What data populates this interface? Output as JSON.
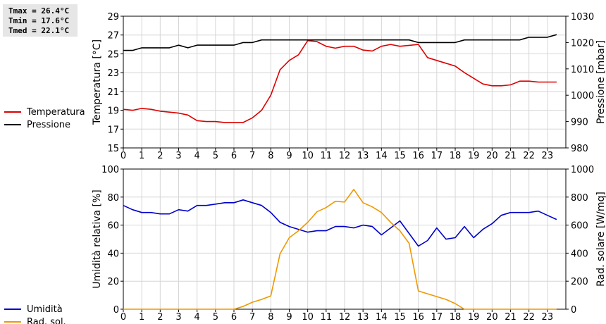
{
  "stats": {
    "tmax": "Tmax = 26.4°C",
    "tmin": "Tmin = 17.6°C",
    "tmed": "Tmed = 22.1°C"
  },
  "chart_data": [
    {
      "type": "line",
      "ylabel": "Temperatura [°C]",
      "y2label": "Pressione [mbar]",
      "xlim": [
        0,
        24
      ],
      "ylim": [
        15,
        29
      ],
      "y2lim": [
        980,
        1030
      ],
      "x_ticks": [
        "0",
        "1",
        "2",
        "3",
        "4",
        "5",
        "6",
        "7",
        "8",
        "9",
        "10",
        "11",
        "12",
        "13",
        "14",
        "15",
        "16",
        "17",
        "18",
        "19",
        "20",
        "21",
        "22",
        "23"
      ],
      "y_ticks": [
        "15",
        "17",
        "19",
        "21",
        "23",
        "25",
        "27",
        "29"
      ],
      "y2_ticks": [
        "980",
        "990",
        "1000",
        "1010",
        "1020",
        "1030"
      ],
      "grid": true,
      "legend_position": "left",
      "series": [
        {
          "name": "Temperatura",
          "axis": "left",
          "color": "#dd0000",
          "x": [
            0,
            0.5,
            1,
            1.5,
            2,
            2.5,
            3,
            3.5,
            4,
            4.5,
            5,
            5.5,
            6,
            6.5,
            7,
            7.5,
            8,
            8.5,
            9,
            9.5,
            10,
            10.5,
            11,
            11.5,
            12,
            12.5,
            13,
            13.5,
            14,
            14.5,
            15,
            15.5,
            16,
            16.5,
            17,
            17.5,
            18,
            18.5,
            19,
            19.5,
            20,
            20.5,
            21,
            21.5,
            22,
            22.5,
            23,
            23.5
          ],
          "y": [
            19.1,
            19.0,
            19.2,
            19.1,
            18.9,
            18.8,
            18.7,
            18.5,
            17.9,
            17.8,
            17.8,
            17.7,
            17.7,
            17.7,
            18.2,
            19.0,
            20.6,
            23.3,
            24.3,
            24.9,
            26.4,
            26.3,
            25.8,
            25.6,
            25.8,
            25.8,
            25.4,
            25.3,
            25.8,
            26.0,
            25.8,
            25.9,
            26.0,
            24.6,
            24.3,
            24.0,
            23.7,
            23.0,
            22.4,
            21.8,
            21.6,
            21.6,
            21.7,
            22.1,
            22.1,
            22.0,
            22.0,
            22.0
          ]
        },
        {
          "name": "Pressione",
          "axis": "right",
          "color": "#000000",
          "x": [
            0,
            0.5,
            1,
            1.5,
            2,
            2.5,
            3,
            3.5,
            4,
            4.5,
            5,
            5.5,
            6,
            6.5,
            7,
            7.5,
            8,
            8.5,
            9,
            9.5,
            10,
            10.5,
            11,
            11.5,
            12,
            12.5,
            13,
            13.5,
            14,
            14.5,
            15,
            15.5,
            16,
            16.5,
            17,
            17.5,
            18,
            18.5,
            19,
            19.5,
            20,
            20.5,
            21,
            21.5,
            22,
            22.5,
            23,
            23.5
          ],
          "y": [
            1017,
            1017,
            1018,
            1018,
            1018,
            1018,
            1019,
            1018,
            1019,
            1019,
            1019,
            1019,
            1019,
            1020,
            1020,
            1021,
            1021,
            1021,
            1021,
            1021,
            1021,
            1021,
            1021,
            1021,
            1021,
            1021,
            1021,
            1021,
            1021,
            1021,
            1021,
            1021,
            1020,
            1020,
            1020,
            1020,
            1020,
            1021,
            1021,
            1021,
            1021,
            1021,
            1021,
            1021,
            1022,
            1022,
            1022,
            1023
          ]
        }
      ]
    },
    {
      "type": "line",
      "ylabel": "Umidità relativa [%]",
      "y2label": "Rad. solare [W/mq]",
      "xlim": [
        0,
        24
      ],
      "ylim": [
        0,
        100
      ],
      "y2lim": [
        0,
        1000
      ],
      "x_ticks": [
        "0",
        "1",
        "2",
        "3",
        "4",
        "5",
        "6",
        "7",
        "8",
        "9",
        "10",
        "11",
        "12",
        "13",
        "14",
        "15",
        "16",
        "17",
        "18",
        "19",
        "20",
        "21",
        "22",
        "23"
      ],
      "y_ticks": [
        "0",
        "20",
        "40",
        "60",
        "80",
        "100"
      ],
      "y2_ticks": [
        "0",
        "200",
        "400",
        "600",
        "800",
        "1000"
      ],
      "grid": true,
      "legend_position": "left",
      "series": [
        {
          "name": "Umidità",
          "axis": "left",
          "color": "#0000cc",
          "x": [
            0,
            0.5,
            1,
            1.5,
            2,
            2.5,
            3,
            3.5,
            4,
            4.5,
            5,
            5.5,
            6,
            6.5,
            7,
            7.5,
            8,
            8.5,
            9,
            9.5,
            10,
            10.5,
            11,
            11.5,
            12,
            12.5,
            13,
            13.5,
            14,
            14.5,
            15,
            15.5,
            16,
            16.5,
            17,
            17.5,
            18,
            18.5,
            19,
            19.5,
            20,
            20.5,
            21,
            21.5,
            22,
            22.5,
            23,
            23.5
          ],
          "y": [
            74,
            71,
            69,
            69,
            68,
            68,
            71,
            70,
            74,
            74,
            75,
            76,
            76,
            78,
            76,
            74,
            69,
            62,
            59,
            57,
            55,
            56,
            56,
            59,
            59,
            58,
            60,
            59,
            53,
            58,
            63,
            54,
            45,
            49,
            58,
            50,
            51,
            59,
            51,
            57,
            61,
            67,
            69,
            69,
            69,
            70,
            67,
            64
          ]
        },
        {
          "name": "Rad. sol.",
          "axis": "right",
          "color": "#ee9900",
          "x": [
            0,
            0.5,
            1,
            1.5,
            2,
            2.5,
            3,
            3.5,
            4,
            4.5,
            5,
            5.5,
            6,
            6.5,
            7,
            7.5,
            8,
            8.5,
            9,
            9.5,
            10,
            10.5,
            11,
            11.5,
            12,
            12.5,
            13,
            13.5,
            14,
            14.5,
            15,
            15.5,
            16,
            16.5,
            17,
            17.5,
            18,
            18.5,
            19,
            19.5,
            20,
            20.5,
            21,
            21.5,
            22,
            22.5,
            23,
            23.5
          ],
          "y": [
            0,
            0,
            0,
            0,
            0,
            0,
            0,
            0,
            0,
            0,
            0,
            0,
            0,
            20,
            50,
            70,
            95,
            395,
            510,
            560,
            620,
            695,
            725,
            770,
            765,
            855,
            760,
            730,
            690,
            620,
            560,
            470,
            130,
            110,
            90,
            70,
            40,
            0,
            0,
            0,
            0,
            0,
            0,
            0,
            0,
            0,
            0,
            0
          ]
        }
      ]
    }
  ]
}
